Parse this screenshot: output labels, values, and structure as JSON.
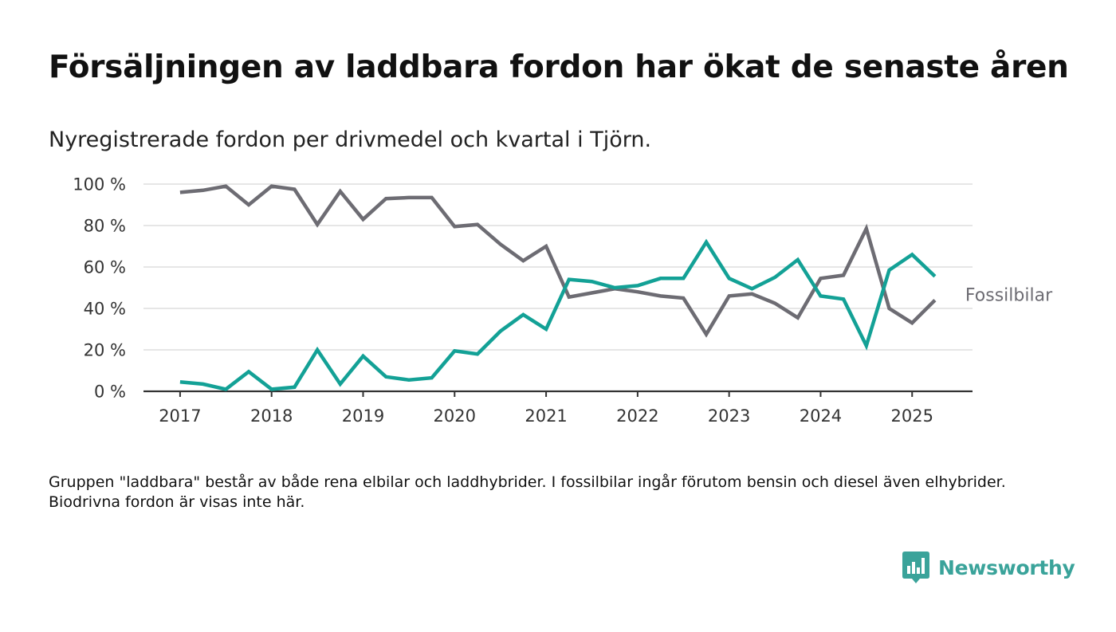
{
  "header": {
    "title": "Försäljningen av laddbara fordon har ökat de senaste åren",
    "subtitle": "Nyregistrerade fordon per drivmedel och kvartal i Tjörn."
  },
  "footnote": "Gruppen \"laddbara\" består av både rena elbilar och laddhybrider. I fossilbilar ingår förutom bensin och diesel även elhybrider. Biodrivna fordon är visas inte här.",
  "logo": {
    "text": "Newsworthy",
    "icon": "bar-chart-speech-bubble-icon",
    "color": "#3aa39a"
  },
  "chart_data": {
    "type": "line",
    "x": [
      2017.0,
      2017.25,
      2017.5,
      2017.75,
      2018.0,
      2018.25,
      2018.5,
      2018.75,
      2019.0,
      2019.25,
      2019.5,
      2019.75,
      2020.0,
      2020.25,
      2020.5,
      2020.75,
      2021.0,
      2021.25,
      2021.5,
      2021.75,
      2022.0,
      2022.25,
      2022.5,
      2022.75,
      2023.0,
      2023.25,
      2023.5,
      2023.75,
      2024.0,
      2024.25,
      2024.5,
      2024.75,
      2025.0,
      2025.25
    ],
    "series": [
      {
        "name": "Fossilbilar",
        "color": "#6d6c73",
        "values": [
          96,
          97,
          99,
          90,
          99,
          97.5,
          80.5,
          96.5,
          83,
          93,
          93.5,
          93.5,
          79.5,
          80.5,
          71,
          63,
          70,
          45.5,
          47.5,
          49.5,
          48,
          46,
          45,
          27.5,
          46,
          47,
          42.5,
          35.5,
          54.5,
          56,
          78.5,
          40,
          33,
          44
        ]
      },
      {
        "name": "",
        "color": "#13a196",
        "values": [
          4.5,
          3.5,
          1,
          9.5,
          1,
          2,
          20,
          3.5,
          17,
          7,
          5.5,
          6.5,
          19.5,
          18,
          29,
          37,
          30,
          54,
          53,
          50,
          51,
          54.5,
          54.5,
          72,
          54.5,
          49.5,
          55,
          63.5,
          46,
          44.5,
          22,
          58.5,
          66,
          55.5
        ]
      }
    ],
    "x_ticks": [
      2017,
      2018,
      2019,
      2020,
      2021,
      2022,
      2023,
      2024,
      2025
    ],
    "y_ticks": [
      0,
      20,
      40,
      60,
      80,
      100
    ],
    "y_tick_labels": [
      "0 %",
      "20 %",
      "40 %",
      "60 %",
      "80 %",
      "100 %"
    ],
    "ylim": [
      0,
      100
    ],
    "xlim": [
      2016.6,
      2025.66
    ],
    "grid": "horizontal",
    "title": "Försäljningen av laddbara fordon har ökat de senaste åren",
    "subtitle": "Nyregistrerade fordon per drivmedel och kvartal i Tjörn.",
    "xlabel": "",
    "ylabel": "",
    "colors": {
      "grid": "#dddddd",
      "axis": "#333333"
    }
  }
}
